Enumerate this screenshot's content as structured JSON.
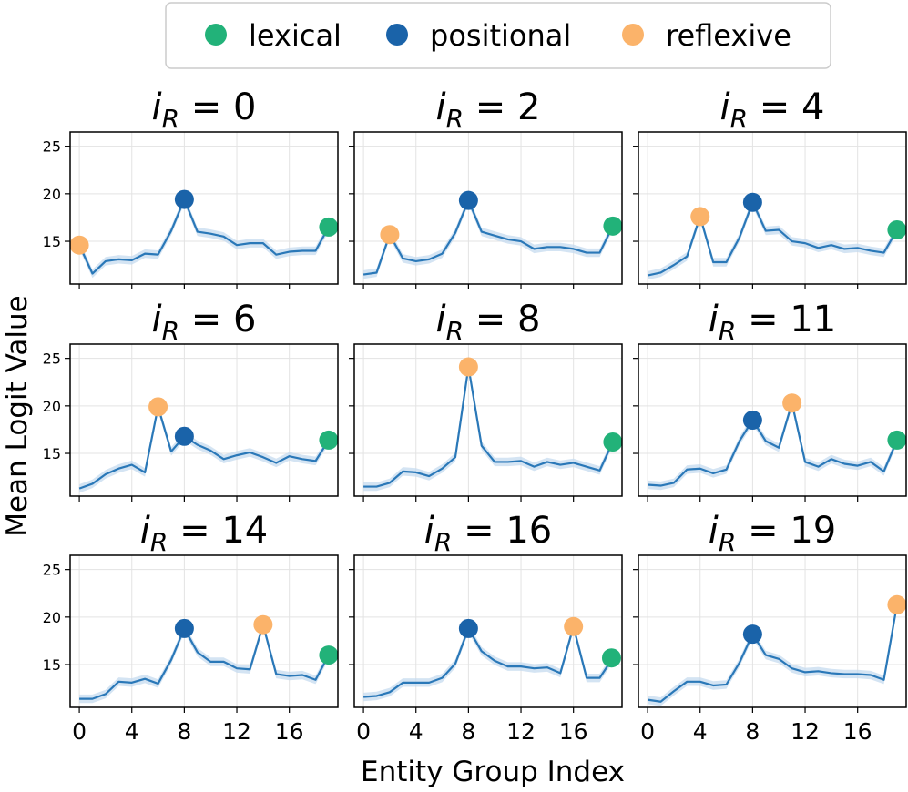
{
  "legend": {
    "items": [
      {
        "label": "lexical",
        "color": "#22b279"
      },
      {
        "label": "positional",
        "color": "#1a63a9"
      },
      {
        "label": "reflexive",
        "color": "#fbb36a"
      }
    ]
  },
  "chart_data": {
    "type": "line",
    "layout": "3x3 small multiples, shared axes",
    "xlabel": "Entity Group Index",
    "ylabel": "Mean Logit Value",
    "xticks": [
      0,
      4,
      8,
      12,
      16
    ],
    "yticks": [
      15,
      20,
      25
    ],
    "xlim": [
      -0.7,
      19.7
    ],
    "ylim": [
      10.5,
      26.5
    ],
    "line_color": "#2a78b8",
    "band_color": "#c6dbef",
    "title_prefix": "i",
    "title_subscript": "R",
    "title_relation": " = ",
    "panels": [
      {
        "title_value": "0",
        "values": [
          14.6,
          11.6,
          12.9,
          13.1,
          13.0,
          13.7,
          13.6,
          16.1,
          19.4,
          16.0,
          15.8,
          15.5,
          14.6,
          14.8,
          14.8,
          13.6,
          13.9,
          14.0,
          14.0,
          16.5
        ],
        "markers": [
          {
            "kind": "reflexive",
            "x": 0
          },
          {
            "kind": "positional",
            "x": 8
          },
          {
            "kind": "lexical",
            "x": 19
          }
        ]
      },
      {
        "title_value": "2",
        "values": [
          11.5,
          11.7,
          15.7,
          13.2,
          12.9,
          13.1,
          13.7,
          15.9,
          19.3,
          16.0,
          15.6,
          15.2,
          15.0,
          14.2,
          14.4,
          14.4,
          14.2,
          13.8,
          13.8,
          16.6
        ],
        "markers": [
          {
            "kind": "reflexive",
            "x": 2
          },
          {
            "kind": "positional",
            "x": 8
          },
          {
            "kind": "lexical",
            "x": 19
          }
        ]
      },
      {
        "title_value": "4",
        "values": [
          11.4,
          11.7,
          12.5,
          13.4,
          17.6,
          12.8,
          12.8,
          15.4,
          19.1,
          16.1,
          16.2,
          15.0,
          14.8,
          14.3,
          14.6,
          14.2,
          14.3,
          14.0,
          13.8,
          16.2
        ],
        "markers": [
          {
            "kind": "reflexive",
            "x": 4
          },
          {
            "kind": "positional",
            "x": 8
          },
          {
            "kind": "lexical",
            "x": 19
          }
        ]
      },
      {
        "title_value": "6",
        "values": [
          11.3,
          11.8,
          12.8,
          13.4,
          13.8,
          13.0,
          19.9,
          15.2,
          16.8,
          15.9,
          15.3,
          14.4,
          14.8,
          15.1,
          14.6,
          14.0,
          14.7,
          14.4,
          14.2,
          16.4
        ],
        "markers": [
          {
            "kind": "reflexive",
            "x": 6
          },
          {
            "kind": "positional",
            "x": 8
          },
          {
            "kind": "lexical",
            "x": 19
          }
        ]
      },
      {
        "title_value": "8",
        "values": [
          11.5,
          11.5,
          11.9,
          13.1,
          13.0,
          12.6,
          13.4,
          14.6,
          24.1,
          15.8,
          14.1,
          14.1,
          14.2,
          13.6,
          14.1,
          13.8,
          14.0,
          13.6,
          13.2,
          16.2
        ],
        "markers": [
          {
            "kind": "reflexive",
            "x": 8
          },
          {
            "kind": "lexical",
            "x": 19
          }
        ]
      },
      {
        "title_value": "11",
        "values": [
          11.7,
          11.6,
          11.9,
          13.3,
          13.4,
          12.9,
          13.3,
          16.3,
          18.5,
          16.3,
          15.6,
          20.3,
          14.1,
          13.6,
          14.4,
          13.9,
          13.7,
          14.1,
          13.1,
          16.4
        ],
        "markers": [
          {
            "kind": "reflexive",
            "x": 11
          },
          {
            "kind": "positional",
            "x": 8
          },
          {
            "kind": "lexical",
            "x": 19
          }
        ]
      },
      {
        "title_value": "14",
        "values": [
          11.4,
          11.4,
          11.9,
          13.2,
          13.1,
          13.5,
          13.0,
          15.5,
          18.8,
          16.3,
          15.3,
          15.3,
          14.6,
          14.5,
          19.2,
          14.0,
          13.8,
          13.9,
          13.4,
          16.0
        ],
        "markers": [
          {
            "kind": "reflexive",
            "x": 14
          },
          {
            "kind": "positional",
            "x": 8
          },
          {
            "kind": "lexical",
            "x": 19
          }
        ]
      },
      {
        "title_value": "16",
        "values": [
          11.6,
          11.7,
          12.1,
          13.1,
          13.1,
          13.1,
          13.6,
          15.1,
          18.8,
          16.4,
          15.4,
          14.8,
          14.8,
          14.6,
          14.7,
          14.1,
          19.0,
          13.6,
          13.6,
          15.7
        ],
        "markers": [
          {
            "kind": "reflexive",
            "x": 16
          },
          {
            "kind": "positional",
            "x": 8
          },
          {
            "kind": "lexical",
            "x": 18.9
          }
        ]
      },
      {
        "title_value": "19",
        "values": [
          11.3,
          11.1,
          12.2,
          13.2,
          13.2,
          12.8,
          12.9,
          15.2,
          18.2,
          16.0,
          15.6,
          14.6,
          14.2,
          14.3,
          14.1,
          14.0,
          14.0,
          13.9,
          13.4,
          21.3
        ],
        "markers": [
          {
            "kind": "reflexive",
            "x": 19
          },
          {
            "kind": "positional",
            "x": 8
          }
        ]
      }
    ]
  }
}
